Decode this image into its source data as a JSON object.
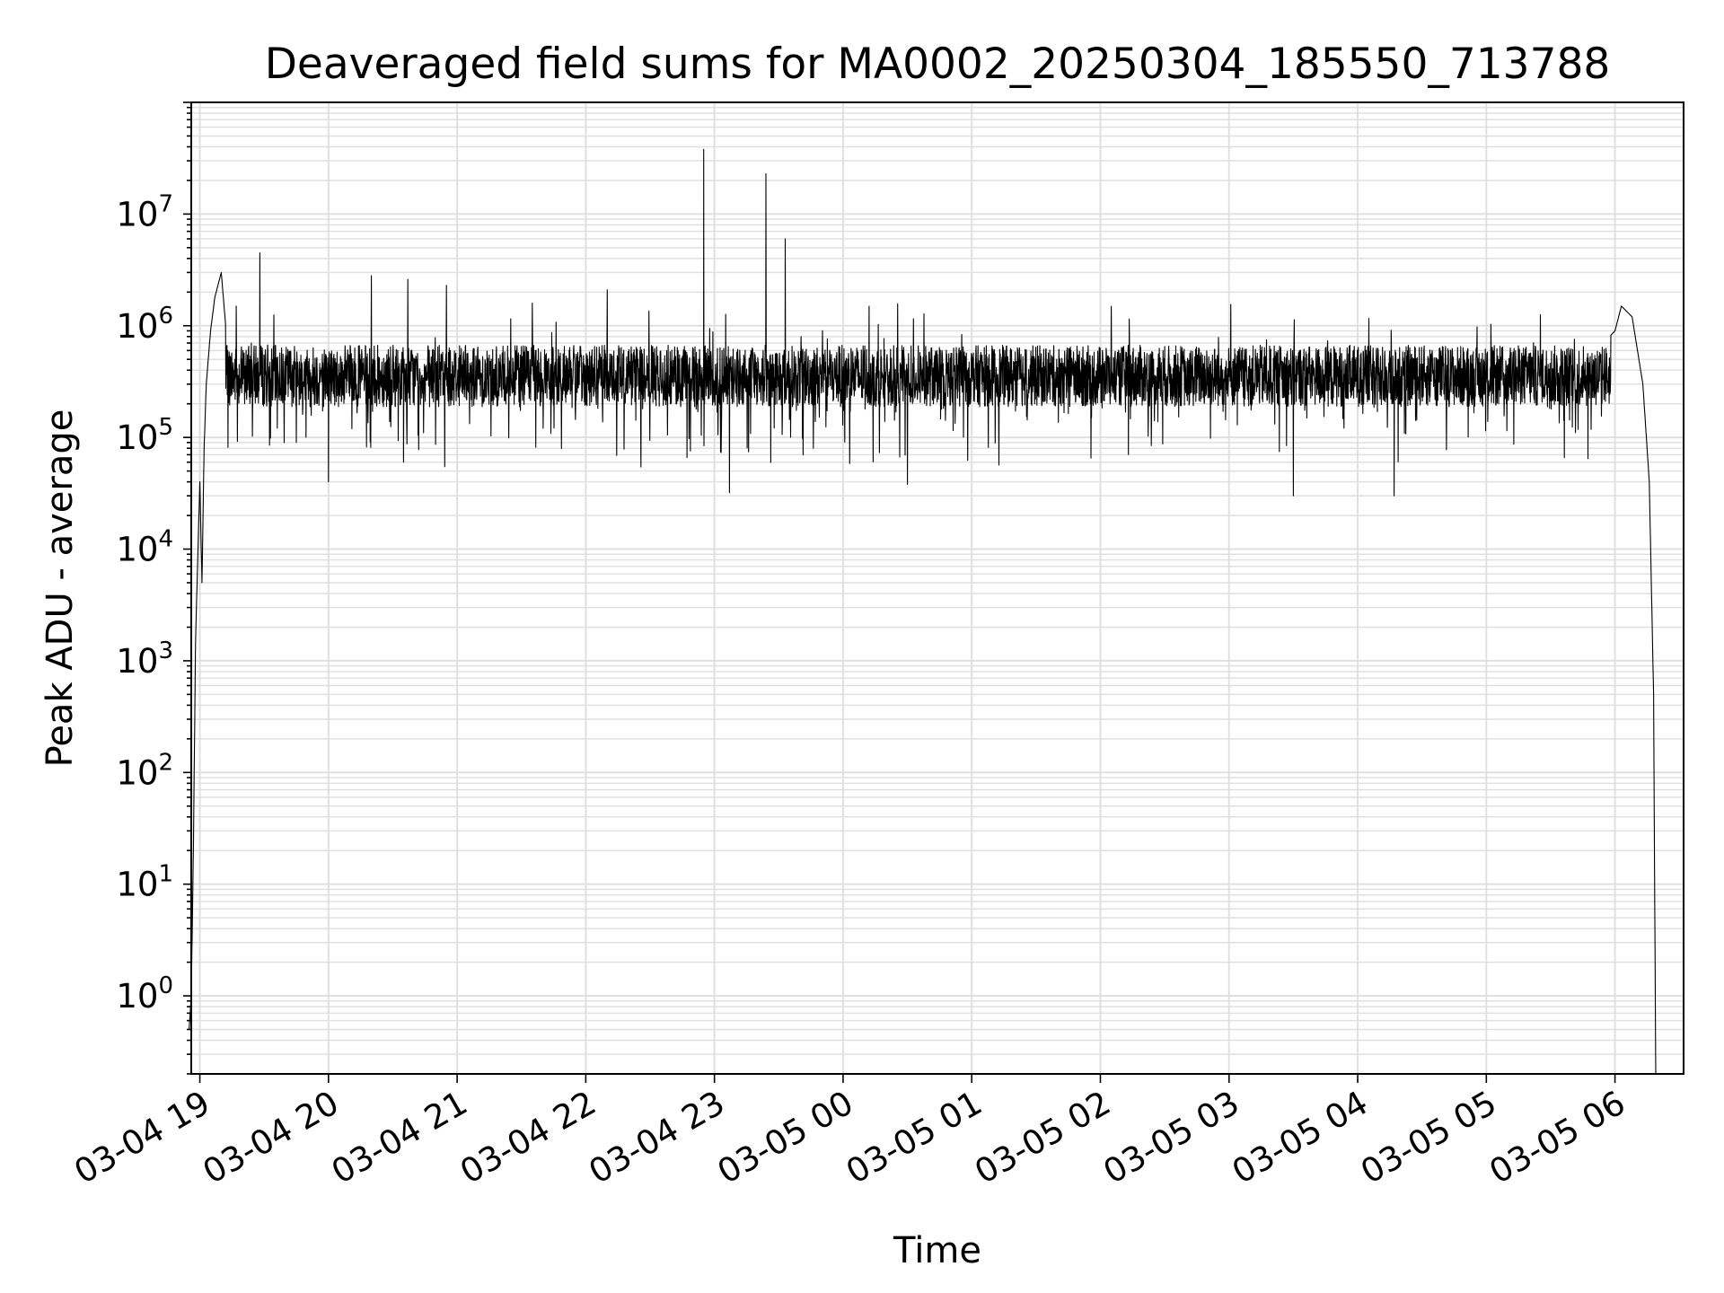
{
  "chart_data": {
    "type": "line",
    "title": "Deaveraged field sums for MA0002_20250304_185550_713788",
    "xlabel": "Time",
    "ylabel": "Peak ADU - average",
    "yscale": "log",
    "ylim": [
      0.2,
      100000000
    ],
    "xlim": [
      "2025-03-04 18:56",
      "2025-03-05 06:32"
    ],
    "grid": true,
    "line_color": "#000000",
    "grid_color": "#e0e0e0",
    "x_ticks": [
      "03-04 19",
      "03-04 20",
      "03-04 21",
      "03-04 22",
      "03-04 23",
      "03-05 00",
      "03-05 01",
      "03-05 02",
      "03-05 03",
      "03-05 04",
      "03-05 05",
      "03-05 06"
    ],
    "y_ticks": [
      {
        "base": "10",
        "exp": "0",
        "value": 1
      },
      {
        "base": "10",
        "exp": "1",
        "value": 10
      },
      {
        "base": "10",
        "exp": "2",
        "value": 100
      },
      {
        "base": "10",
        "exp": "3",
        "value": 1000
      },
      {
        "base": "10",
        "exp": "4",
        "value": 10000
      },
      {
        "base": "10",
        "exp": "5",
        "value": 100000
      },
      {
        "base": "10",
        "exp": "6",
        "value": 1000000
      },
      {
        "base": "10",
        "exp": "7",
        "value": 10000000
      }
    ],
    "series": [
      {
        "points": [
          [
            "2025-03-04 18:55",
            0.5
          ],
          [
            "2025-03-04 18:56",
            1.0
          ],
          [
            "2025-03-04 18:57",
            20
          ],
          [
            "2025-03-04 18:58",
            1500
          ],
          [
            "2025-03-04 18:59",
            8000
          ],
          [
            "2025-03-04 19:00",
            40000
          ],
          [
            "2025-03-04 19:01",
            5000
          ],
          [
            "2025-03-04 19:02",
            80000
          ],
          [
            "2025-03-04 19:03",
            300000
          ],
          [
            "2025-03-04 19:05",
            900000
          ],
          [
            "2025-03-04 19:07",
            1800000
          ],
          [
            "2025-03-04 19:10",
            3000000
          ],
          [
            "2025-03-04 19:13",
            600000
          ],
          [
            "2025-03-04 19:17",
            1500000
          ],
          [
            "2025-03-04 19:20",
            300000
          ],
          [
            "2025-03-04 19:24",
            700000
          ],
          [
            "2025-03-04 19:28",
            4500000
          ],
          [
            "2025-03-04 19:32",
            300000
          ],
          [
            "2025-03-04 19:45",
            90000
          ],
          [
            "2025-03-04 20:00",
            40000
          ],
          [
            "2025-03-04 20:20",
            2800000
          ],
          [
            "2025-03-04 20:35",
            60000
          ],
          [
            "2025-03-04 20:37",
            2600000
          ],
          [
            "2025-03-04 20:55",
            2300000
          ],
          [
            "2025-03-04 21:30",
            400000
          ],
          [
            "2025-03-04 22:10",
            2100000
          ],
          [
            "2025-03-04 22:40",
            400000
          ],
          [
            "2025-03-04 22:55",
            38000000
          ],
          [
            "2025-03-04 23:07",
            32000
          ],
          [
            "2025-03-04 23:24",
            23000000
          ],
          [
            "2025-03-04 23:33",
            6000000
          ],
          [
            "2025-03-04 23:40",
            400000
          ],
          [
            "2025-03-05 00:00",
            350000
          ],
          [
            "2025-03-05 00:30",
            38000
          ],
          [
            "2025-03-05 01:00",
            350000
          ],
          [
            "2025-03-05 02:00",
            350000
          ],
          [
            "2025-03-05 03:00",
            350000
          ],
          [
            "2025-03-05 03:30",
            30000
          ],
          [
            "2025-03-05 04:17",
            30000
          ],
          [
            "2025-03-05 05:00",
            350000
          ],
          [
            "2025-03-05 05:45",
            450000
          ],
          [
            "2025-03-05 06:00",
            900000
          ],
          [
            "2025-03-05 06:03",
            1500000
          ],
          [
            "2025-03-05 06:08",
            1200000
          ],
          [
            "2025-03-05 06:13",
            300000
          ],
          [
            "2025-03-05 06:16",
            40000
          ],
          [
            "2025-03-05 06:18",
            500
          ],
          [
            "2025-03-05 06:19",
            0.2
          ]
        ]
      }
    ]
  }
}
